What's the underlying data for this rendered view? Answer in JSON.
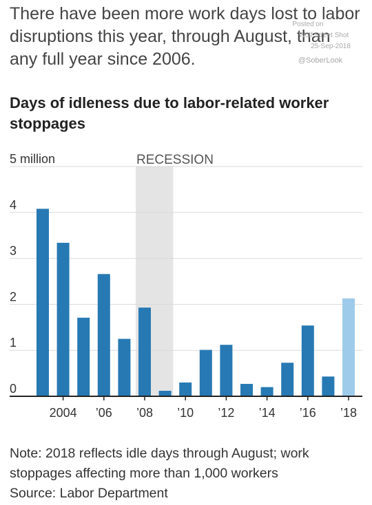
{
  "headline": {
    "lines": [
      "There have been more work days lost to labor",
      "disruptions this year, through August, than",
      "any full year since 2006."
    ]
  },
  "watermark": {
    "posted": "Posted on",
    "source": "Wolf Street Shot",
    "date": "25-Sep-2018",
    "handle": "@SoberLook"
  },
  "chart_data": {
    "type": "bar",
    "title": "Days of idleness due to labor-related worker stoppages",
    "title_lines": [
      "Days of idleness due to labor-related worker",
      "stoppages"
    ],
    "unit_label": "5 million",
    "x": [
      2003,
      2004,
      2005,
      2006,
      2007,
      2008,
      2009,
      2010,
      2011,
      2012,
      2013,
      2014,
      2015,
      2016,
      2017,
      2018
    ],
    "values": [
      4.08,
      3.34,
      1.71,
      2.66,
      1.25,
      1.93,
      0.12,
      0.3,
      1.01,
      1.12,
      0.27,
      0.2,
      0.73,
      1.54,
      0.43,
      2.13
    ],
    "ylim": [
      0,
      5
    ],
    "yticks": [
      {
        "value": 0,
        "label": "0"
      },
      {
        "value": 1,
        "label": "1"
      },
      {
        "value": 2,
        "label": "2"
      },
      {
        "value": 3,
        "label": "3"
      },
      {
        "value": 4,
        "label": "4"
      },
      {
        "value": 5,
        "label": "5 million"
      }
    ],
    "xticks": [
      {
        "year": 2004,
        "label": "2004"
      },
      {
        "year": 2006,
        "label": "’06"
      },
      {
        "year": 2008,
        "label": "’08"
      },
      {
        "year": 2010,
        "label": "’10"
      },
      {
        "year": 2012,
        "label": "’12"
      },
      {
        "year": 2014,
        "label": "’14"
      },
      {
        "year": 2016,
        "label": "’16"
      },
      {
        "year": 2018,
        "label": "’18"
      }
    ],
    "recession": {
      "label": "RECESSION",
      "start": 2008.0,
      "end": 2009.5
    },
    "colors": {
      "bar": "#2779b3",
      "highlight": "#9ecbea",
      "recession": "#e4e4e4",
      "grid": "#d9d9d9",
      "axis": "#222222"
    },
    "highlight_year": 2018,
    "grid": true
  },
  "notes": [
    "Note: 2018 reflects idle days through August; work",
    "stoppages affecting more than 1,000 workers",
    "Source: Labor Department"
  ]
}
